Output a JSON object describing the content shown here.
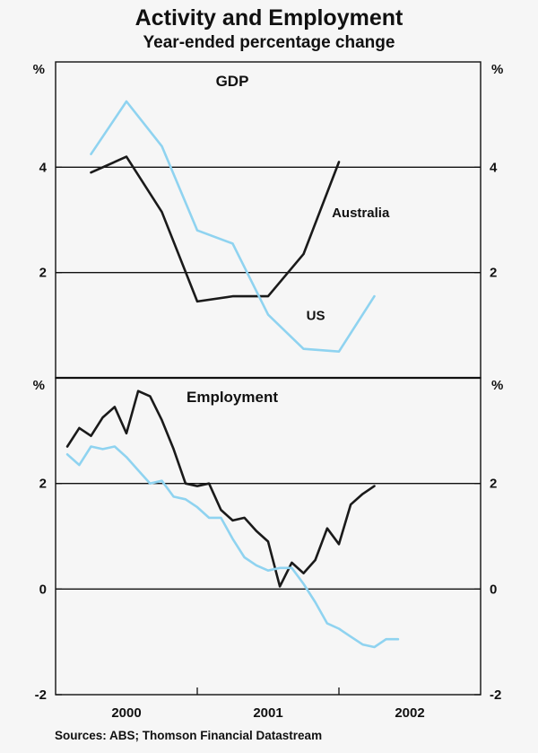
{
  "header": {
    "title": "Activity and Employment",
    "subtitle": "Year-ended percentage change"
  },
  "footer": {
    "source": "Sources: ABS; Thomson Financial Datastream"
  },
  "colors": {
    "australia": "#1a1a1a",
    "us": "#8fd3f0",
    "axis": "#111111"
  },
  "chart_data": [
    {
      "type": "line",
      "title": "GDP",
      "ylabel_left": "%",
      "ylabel_right": "%",
      "ylim": [
        0,
        6
      ],
      "yticks": [
        2,
        4
      ],
      "ytick_labels": [
        "2",
        "4"
      ],
      "grid_lines": [
        2,
        4
      ],
      "xlim": [
        1999.5,
        2002.5
      ],
      "annotations": [
        {
          "text": "Australia",
          "x": 2001.45,
          "y": 3.05
        },
        {
          "text": "US",
          "x": 2001.27,
          "y": 1.1
        }
      ],
      "series": [
        {
          "name": "Australia",
          "color_key": "australia",
          "x": [
            1999.75,
            2000.0,
            2000.25,
            2000.5,
            2000.75,
            2001.0,
            2001.25,
            2001.5
          ],
          "y": [
            3.9,
            4.2,
            3.15,
            1.45,
            1.55,
            1.55,
            2.35,
            4.1
          ]
        },
        {
          "name": "US",
          "color_key": "us",
          "x": [
            1999.75,
            2000.0,
            2000.25,
            2000.5,
            2000.75,
            2001.0,
            2001.25,
            2001.5,
            2001.75
          ],
          "y": [
            4.25,
            5.25,
            4.4,
            2.8,
            2.55,
            1.2,
            0.55,
            0.5,
            1.55
          ]
        }
      ]
    },
    {
      "type": "line",
      "title": "Employment",
      "ylabel_left": "%",
      "ylabel_right": "%",
      "ylim": [
        -2,
        4
      ],
      "yticks": [
        -2,
        0,
        2
      ],
      "ytick_labels": [
        "-2",
        "0",
        "2"
      ],
      "grid_lines": [
        0,
        2
      ],
      "xlim": [
        1999.5,
        2002.5
      ],
      "xtick_boundaries": [
        2000.5,
        2001.5
      ],
      "xtick_labels": [
        {
          "label": "2000",
          "x": 2000.0
        },
        {
          "label": "2001",
          "x": 2001.0
        },
        {
          "label": "2002",
          "x": 2002.0
        }
      ],
      "series": [
        {
          "name": "Australia",
          "color_key": "australia",
          "x": [
            1999.583,
            1999.667,
            1999.75,
            1999.833,
            1999.917,
            2000.0,
            2000.083,
            2000.167,
            2000.25,
            2000.333,
            2000.417,
            2000.5,
            2000.583,
            2000.667,
            2000.75,
            2000.833,
            2000.917,
            2001.0,
            2001.083,
            2001.167,
            2001.25,
            2001.333,
            2001.417,
            2001.5,
            2001.583,
            2001.667,
            2001.75
          ],
          "y": [
            2.7,
            3.05,
            2.9,
            3.25,
            3.45,
            2.95,
            3.75,
            3.65,
            3.2,
            2.65,
            2.0,
            1.95,
            2.0,
            1.5,
            1.3,
            1.35,
            1.1,
            0.9,
            0.05,
            0.5,
            0.3,
            0.55,
            1.15,
            0.85,
            1.6,
            1.8,
            1.95
          ]
        },
        {
          "name": "US",
          "color_key": "us",
          "x": [
            1999.583,
            1999.667,
            1999.75,
            1999.833,
            1999.917,
            2000.0,
            2000.083,
            2000.167,
            2000.25,
            2000.333,
            2000.417,
            2000.5,
            2000.583,
            2000.667,
            2000.75,
            2000.833,
            2000.917,
            2001.0,
            2001.083,
            2001.167,
            2001.25,
            2001.333,
            2001.417,
            2001.5,
            2001.583,
            2001.667,
            2001.75,
            2001.833,
            2001.917
          ],
          "y": [
            2.55,
            2.35,
            2.7,
            2.65,
            2.7,
            2.5,
            2.25,
            2.0,
            2.05,
            1.75,
            1.7,
            1.55,
            1.35,
            1.35,
            0.95,
            0.6,
            0.45,
            0.35,
            0.4,
            0.4,
            0.1,
            -0.25,
            -0.65,
            -0.75,
            -0.9,
            -1.05,
            -1.1,
            -0.95,
            -0.95
          ]
        }
      ]
    }
  ]
}
